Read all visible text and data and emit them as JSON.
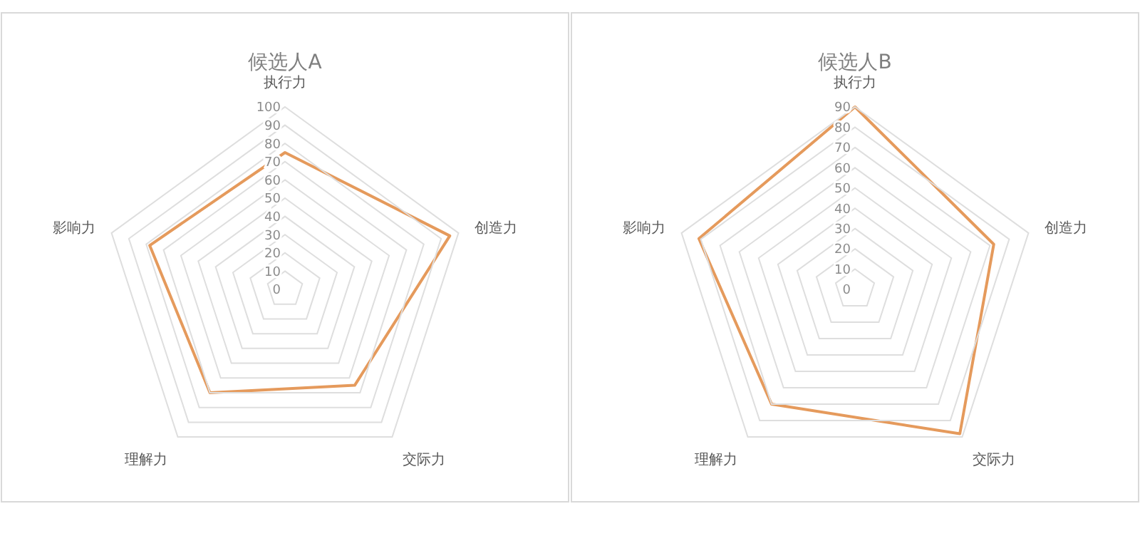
{
  "chart_data": [
    {
      "type": "radar",
      "title": "候选人A",
      "categories": [
        "执行力",
        "创造力",
        "交际力",
        "理解力",
        "影响力"
      ],
      "series": [
        {
          "color": "#e59a5c",
          "values": [
            75,
            95,
            65,
            70,
            78
          ]
        }
      ],
      "ylim": [
        0,
        100
      ],
      "yticks": [
        0,
        10,
        20,
        30,
        40,
        50,
        60,
        70,
        80,
        90,
        100
      ],
      "grid": true
    },
    {
      "type": "radar",
      "title": "候选人B",
      "categories": [
        "执行力",
        "创造力",
        "交际力",
        "理解力",
        "影响力"
      ],
      "series": [
        {
          "color": "#e59a5c",
          "values": [
            90,
            72,
            88,
            70,
            81
          ]
        }
      ],
      "ylim": [
        0,
        90
      ],
      "yticks": [
        0,
        10,
        20,
        30,
        40,
        50,
        60,
        70,
        80,
        90
      ],
      "grid": true
    }
  ]
}
